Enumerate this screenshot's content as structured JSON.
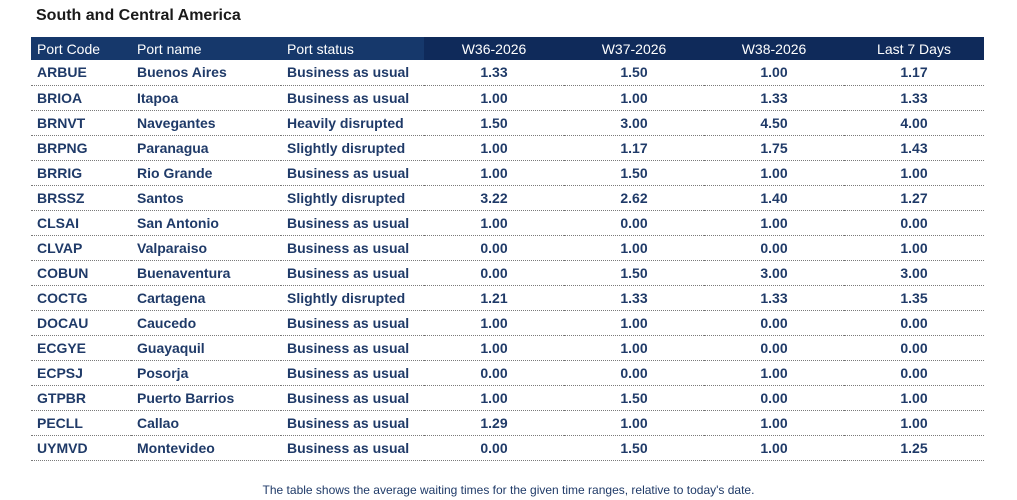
{
  "title": "South and Central America",
  "columns": [
    "Port Code",
    "Port name",
    "Port status",
    "W36-2026",
    "W37-2026",
    "W38-2026",
    "Last 7 Days"
  ],
  "rows": [
    [
      "ARBUE",
      "Buenos Aires",
      "Business as usual",
      "1.33",
      "1.50",
      "1.00",
      "1.17"
    ],
    [
      "BRIOA",
      "Itapoa",
      "Business as usual",
      "1.00",
      "1.00",
      "1.33",
      "1.33"
    ],
    [
      "BRNVT",
      "Navegantes",
      "Heavily disrupted",
      "1.50",
      "3.00",
      "4.50",
      "4.00"
    ],
    [
      "BRPNG",
      "Paranagua",
      "Slightly disrupted",
      "1.00",
      "1.17",
      "1.75",
      "1.43"
    ],
    [
      "BRRIG",
      "Rio Grande",
      "Business as usual",
      "1.00",
      "1.50",
      "1.00",
      "1.00"
    ],
    [
      "BRSSZ",
      "Santos",
      "Slightly disrupted",
      "3.22",
      "2.62",
      "1.40",
      "1.27"
    ],
    [
      "CLSAI",
      "San Antonio",
      "Business as usual",
      "1.00",
      "0.00",
      "1.00",
      "0.00"
    ],
    [
      "CLVAP",
      "Valparaiso",
      "Business as usual",
      "0.00",
      "1.00",
      "0.00",
      "1.00"
    ],
    [
      "COBUN",
      "Buenaventura",
      "Business as usual",
      "0.00",
      "1.50",
      "3.00",
      "3.00"
    ],
    [
      "COCTG",
      "Cartagena",
      "Slightly disrupted",
      "1.21",
      "1.33",
      "1.33",
      "1.35"
    ],
    [
      "DOCAU",
      "Caucedo",
      "Business as usual",
      "1.00",
      "1.00",
      "0.00",
      "0.00"
    ],
    [
      "ECGYE",
      "Guayaquil",
      "Business as usual",
      "1.00",
      "1.00",
      "0.00",
      "0.00"
    ],
    [
      "ECPSJ",
      "Posorja",
      "Business as usual",
      "0.00",
      "0.00",
      "1.00",
      "0.00"
    ],
    [
      "GTPBR",
      "Puerto Barrios",
      "Business as usual",
      "1.00",
      "1.50",
      "0.00",
      "1.00"
    ],
    [
      "PECLL",
      "Callao",
      "Business as usual",
      "1.29",
      "1.00",
      "1.00",
      "1.00"
    ],
    [
      "UYMVD",
      "Montevideo",
      "Business as usual",
      "0.00",
      "1.50",
      "1.00",
      "1.25"
    ]
  ],
  "caption": "The table shows the average waiting times for the given time ranges, relative to today's date.",
  "colors": {
    "header_bg": "#16386b",
    "header_week_bg": "#0f2a5a",
    "header_text": "#ffffff",
    "cell_text": "#1f3a68"
  }
}
